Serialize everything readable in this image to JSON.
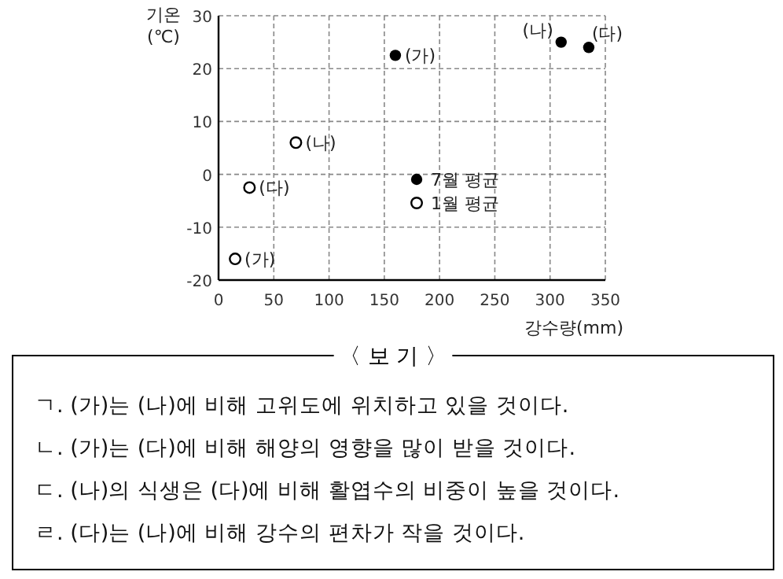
{
  "chart_data": {
    "type": "scatter",
    "xlabel": "강수량(mm)",
    "ylabel": "기온 (℃)",
    "xlim": [
      0,
      350
    ],
    "ylim": [
      -20,
      30
    ],
    "xticks": [
      0,
      50,
      100,
      150,
      200,
      250,
      300,
      350
    ],
    "yticks": [
      -20,
      -10,
      0,
      10,
      20,
      30
    ],
    "grid": true,
    "legend": "bottom right",
    "series": [
      {
        "name": "7월 평균",
        "color": "#000000",
        "marker": "circle",
        "x": [
          160,
          310,
          335
        ],
        "values": [
          22.5,
          25,
          24
        ]
      },
      {
        "name": "1월 평균",
        "color": "#000000",
        "marker": "open circle",
        "x": [
          15,
          70,
          28
        ],
        "values": [
          -16,
          6,
          -2.5
        ]
      }
    ],
    "annotations": [
      {
        "text": "(가)",
        "x": 160,
        "y": 22.5
      },
      {
        "text": "(나)",
        "x": 310,
        "y": 25
      },
      {
        "text": "(다)",
        "x": 335,
        "y": 24
      },
      {
        "text": "(가)",
        "x": 15,
        "y": -16
      },
      {
        "text": "(나)",
        "x": 70,
        "y": 6
      },
      {
        "text": "(다)",
        "x": 28,
        "y": -2.5
      },
      "〈 보 기 〉",
      "ㄱ. (가)는 (나)에 비해 고위도에 위치하고 있을 것이다.",
      "ㄴ. (가)는 (다)에 비해 해양의 영향을 많이 받을 것이다.",
      "ㄷ. (나)의 식생은 (다)에 비해 활엽수의 비중이 높을 것이다.",
      "ㄹ. (다)는 (나)에 비해 강수의 편차가 작을 것이다."
    ]
  }
}
